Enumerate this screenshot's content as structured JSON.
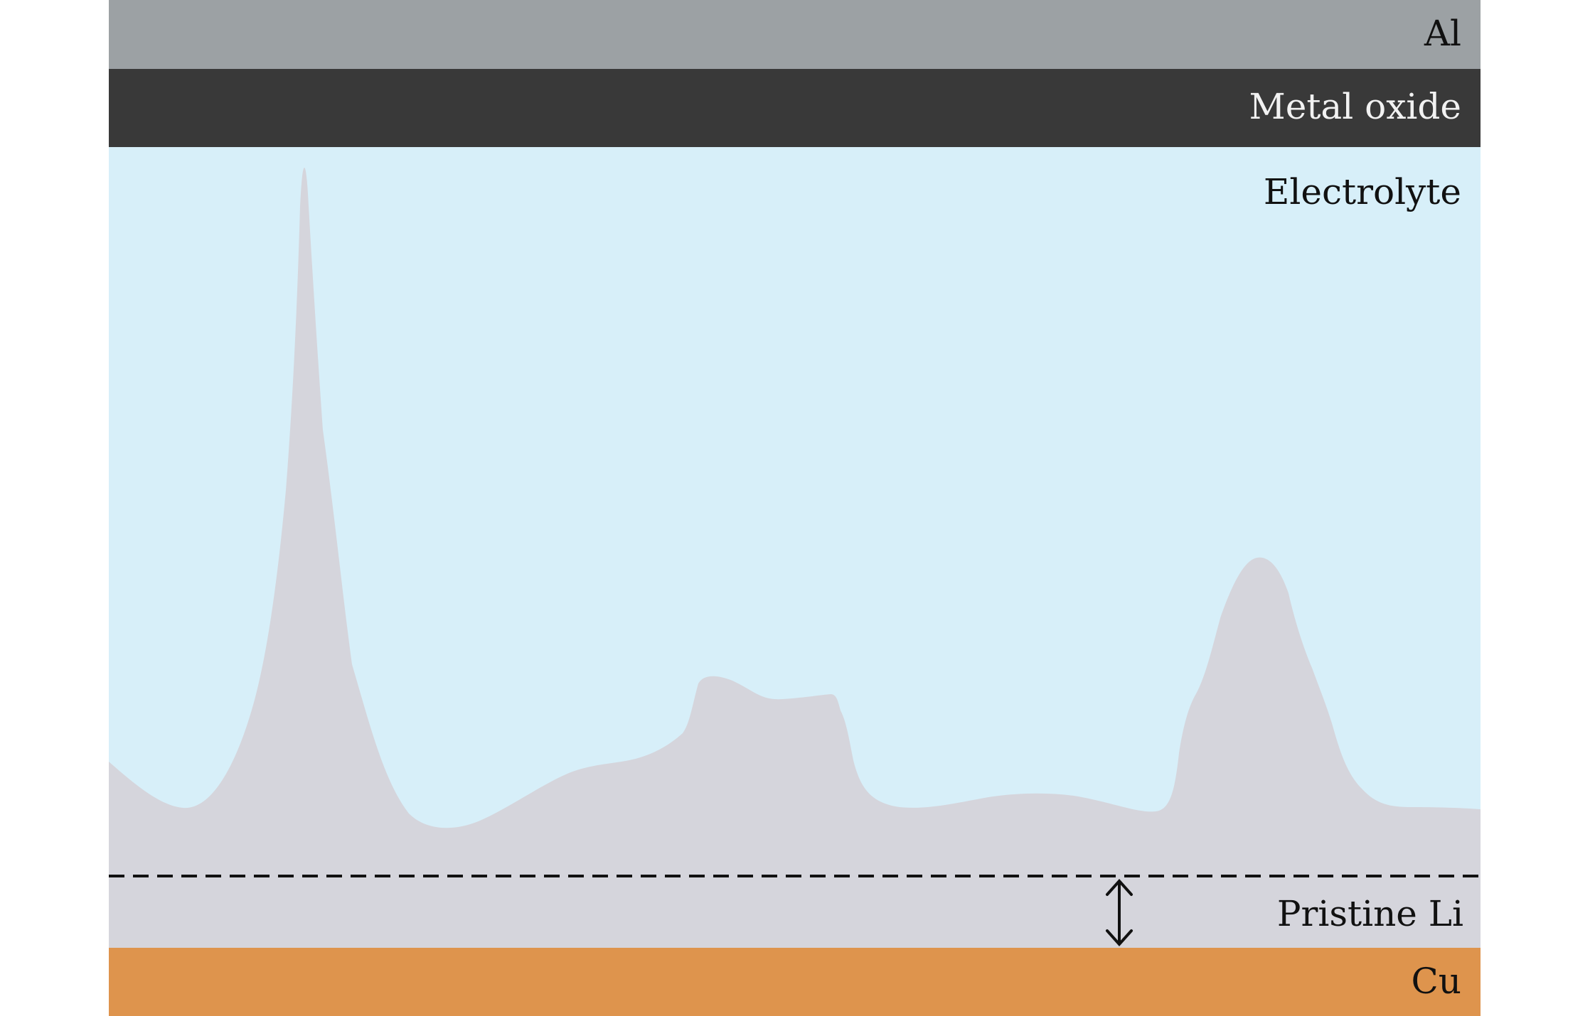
{
  "diagram": {
    "layers": [
      {
        "id": "al",
        "label": "Al",
        "fill": "#9ca1a4",
        "text_color": "#111111"
      },
      {
        "id": "metal-oxide",
        "label": "Metal oxide",
        "fill": "#393939",
        "text_color": "#f2f2f2"
      },
      {
        "id": "electrolyte",
        "label": "Electrolyte",
        "fill": "#d7eff9",
        "text_color": "#111111"
      },
      {
        "id": "pristine-li",
        "label": "Pristine Li",
        "fill": "#d5d5dc",
        "text_color": "#111111"
      },
      {
        "id": "cu",
        "label": "Cu",
        "fill": "#de944d",
        "text_color": "#111111"
      }
    ],
    "dendrite_fill": "#d5d5dc",
    "dashed_line_color": "#111111",
    "arrow_color": "#111111"
  }
}
